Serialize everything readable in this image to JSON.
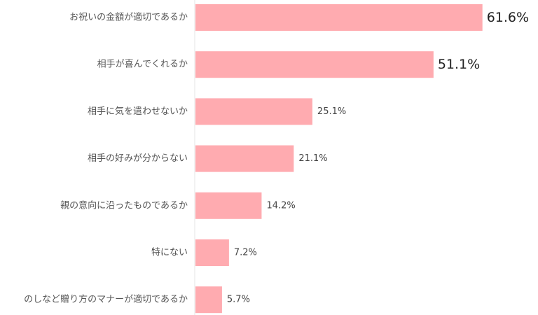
{
  "chart_data": {
    "type": "bar",
    "orientation": "horizontal",
    "categories": [
      "お祝いの金額が適切であるか",
      "相手が喜んでくれるか",
      "相手に気を遣わせないか",
      "相手の好みが分からない",
      "親の意向に沿ったものであるか",
      "特にない",
      "のしなど贈り方のマナーが適切であるか"
    ],
    "values": [
      61.6,
      51.1,
      25.1,
      21.1,
      14.2,
      7.2,
      5.7
    ],
    "value_labels": [
      "61.6%",
      "51.1%",
      "25.1%",
      "21.1%",
      "14.2%",
      "7.2%",
      "5.7%"
    ],
    "highlighted_labels": [
      0,
      1
    ],
    "xlim": [
      0,
      63
    ],
    "bar_color": "#ffabb0",
    "axis_color": "#e6e6e6",
    "label_color": "#555555",
    "value_color": "#444444",
    "highlight_value_color": "#222222",
    "title": "",
    "xlabel": "",
    "ylabel": ""
  }
}
